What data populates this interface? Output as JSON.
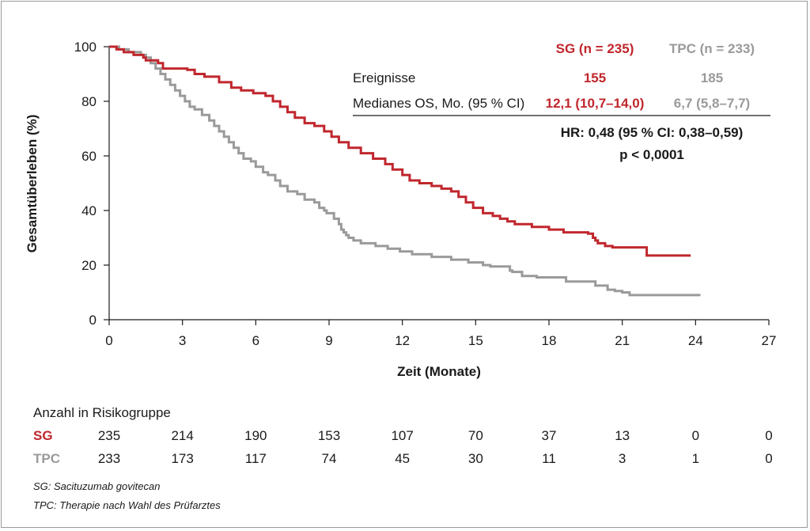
{
  "chart_data": {
    "type": "line",
    "xlabel": "Zeit (Monate)",
    "ylabel": "Gesamtüberleben (%)",
    "xlim": [
      0,
      27
    ],
    "ylim": [
      0,
      100
    ],
    "x_ticks": [
      "0",
      "3",
      "6",
      "9",
      "12",
      "15",
      "18",
      "21",
      "24",
      "27"
    ],
    "y_ticks": [
      "0",
      "20",
      "40",
      "60",
      "80",
      "100"
    ],
    "grid": false,
    "series": [
      {
        "name": "SG",
        "header": "SG (n = 235)",
        "color": "#c0272d",
        "events": "155",
        "median_os": "12,1 (10,7–14,0)",
        "points": [
          [
            0,
            100
          ],
          [
            0.3,
            99
          ],
          [
            0.6,
            98
          ],
          [
            1.0,
            97
          ],
          [
            1.4,
            96
          ],
          [
            1.5,
            95
          ],
          [
            2.0,
            94
          ],
          [
            2.2,
            92
          ],
          [
            3.2,
            91.5
          ],
          [
            3.5,
            90
          ],
          [
            3.9,
            89
          ],
          [
            4.5,
            87
          ],
          [
            5.0,
            85
          ],
          [
            5.4,
            84
          ],
          [
            5.9,
            83
          ],
          [
            6.4,
            82
          ],
          [
            6.7,
            80
          ],
          [
            7.0,
            78
          ],
          [
            7.3,
            76
          ],
          [
            7.6,
            74
          ],
          [
            8.0,
            72
          ],
          [
            8.4,
            71
          ],
          [
            8.8,
            69
          ],
          [
            9.1,
            67
          ],
          [
            9.4,
            65
          ],
          [
            9.8,
            63
          ],
          [
            10.3,
            61
          ],
          [
            10.8,
            59
          ],
          [
            11.3,
            57
          ],
          [
            11.6,
            55
          ],
          [
            12.0,
            53
          ],
          [
            12.3,
            51
          ],
          [
            12.7,
            50
          ],
          [
            13.2,
            49
          ],
          [
            13.6,
            48
          ],
          [
            14.0,
            47
          ],
          [
            14.3,
            45
          ],
          [
            14.6,
            43
          ],
          [
            14.9,
            41
          ],
          [
            15.3,
            39
          ],
          [
            15.7,
            38
          ],
          [
            16.0,
            37
          ],
          [
            16.3,
            36
          ],
          [
            16.6,
            35
          ],
          [
            17.3,
            34
          ],
          [
            18.0,
            33
          ],
          [
            18.6,
            32
          ],
          [
            19.6,
            31.5
          ],
          [
            19.8,
            30
          ],
          [
            19.9,
            29
          ],
          [
            20.0,
            28
          ],
          [
            20.3,
            27
          ],
          [
            20.6,
            26.5
          ],
          [
            22.0,
            23.5
          ],
          [
            23.8,
            23.5
          ]
        ]
      },
      {
        "name": "TPC",
        "header": "TPC (n = 233)",
        "color": "#9a9a9a",
        "events": "185",
        "median_os": "6,7 (5,8–7,7)",
        "points": [
          [
            0,
            100
          ],
          [
            0.4,
            99
          ],
          [
            0.8,
            98
          ],
          [
            1.3,
            97
          ],
          [
            1.5,
            96
          ],
          [
            1.7,
            94
          ],
          [
            1.9,
            92
          ],
          [
            2.1,
            90
          ],
          [
            2.3,
            88
          ],
          [
            2.5,
            86
          ],
          [
            2.7,
            84
          ],
          [
            2.9,
            82
          ],
          [
            3.1,
            80
          ],
          [
            3.3,
            78
          ],
          [
            3.5,
            77
          ],
          [
            3.8,
            75
          ],
          [
            4.1,
            73
          ],
          [
            4.3,
            71
          ],
          [
            4.5,
            69
          ],
          [
            4.7,
            67
          ],
          [
            4.9,
            65
          ],
          [
            5.1,
            63
          ],
          [
            5.3,
            61
          ],
          [
            5.5,
            59
          ],
          [
            5.8,
            58
          ],
          [
            6.0,
            56
          ],
          [
            6.3,
            54
          ],
          [
            6.5,
            53
          ],
          [
            6.8,
            51
          ],
          [
            7.0,
            49
          ],
          [
            7.3,
            47
          ],
          [
            7.7,
            46
          ],
          [
            8.0,
            44
          ],
          [
            8.4,
            43
          ],
          [
            8.6,
            41
          ],
          [
            8.8,
            40
          ],
          [
            8.9,
            39
          ],
          [
            9.2,
            37
          ],
          [
            9.4,
            35
          ],
          [
            9.5,
            33
          ],
          [
            9.6,
            32
          ],
          [
            9.7,
            31
          ],
          [
            9.8,
            30
          ],
          [
            10.0,
            29
          ],
          [
            10.3,
            28
          ],
          [
            10.9,
            27
          ],
          [
            11.4,
            26
          ],
          [
            11.9,
            25
          ],
          [
            12.4,
            24
          ],
          [
            13.2,
            23
          ],
          [
            14.0,
            22
          ],
          [
            14.7,
            21
          ],
          [
            15.3,
            20
          ],
          [
            15.6,
            19.5
          ],
          [
            16.4,
            18
          ],
          [
            16.5,
            17.5
          ],
          [
            16.9,
            16
          ],
          [
            17.5,
            15.5
          ],
          [
            18.7,
            14
          ],
          [
            19.9,
            12.5
          ],
          [
            20.4,
            11
          ],
          [
            20.7,
            10.5
          ],
          [
            21.0,
            10
          ],
          [
            21.3,
            9
          ],
          [
            24.2,
            9
          ]
        ]
      }
    ]
  },
  "stats": {
    "events_label": "Ereignisse",
    "median_label": "Medianes OS, Mo. (95 % CI)",
    "hr": "HR: 0,48 (95 % CI: 0,38–0,59)",
    "p": "p < 0,0001"
  },
  "risk_table": {
    "title": "Anzahl in Risikogruppe",
    "rows": [
      {
        "label": "SG",
        "values": [
          "235",
          "214",
          "190",
          "153",
          "107",
          "70",
          "37",
          "13",
          "0",
          "0"
        ]
      },
      {
        "label": "TPC",
        "values": [
          "233",
          "173",
          "117",
          "74",
          "45",
          "30",
          "11",
          "3",
          "1",
          "0"
        ]
      }
    ]
  },
  "footnotes": [
    "SG: Sacituzumab govitecan",
    "TPC: Therapie nach Wahl des Prüfarztes"
  ]
}
